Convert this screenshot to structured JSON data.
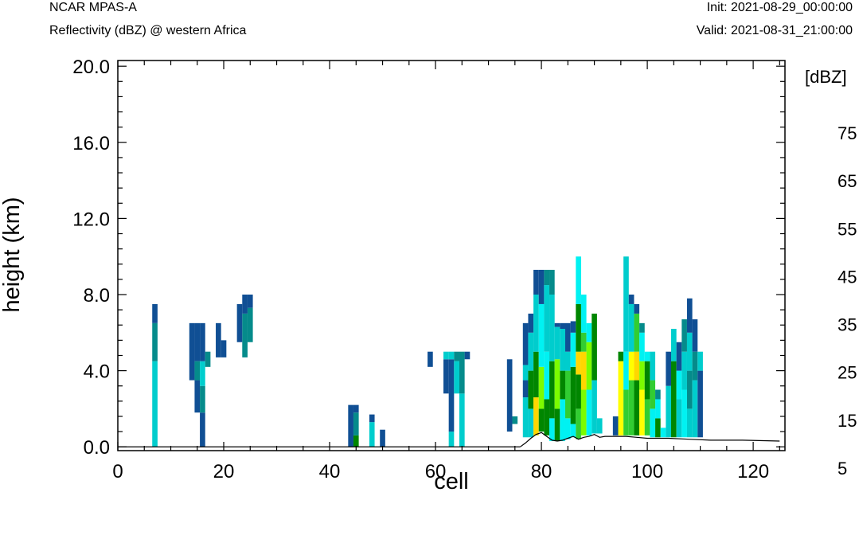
{
  "header": {
    "model": "NCAR MPAS-A",
    "field": "Reflectivity (dBZ) @ western Africa",
    "init": "Init: 2021-08-29_00:00:00",
    "valid": "Valid: 2021-08-31_21:00:00"
  },
  "chart_data": {
    "type": "heatmap",
    "xlabel": "cell",
    "ylabel": "height (km)",
    "xlim": [
      0,
      126
    ],
    "ylim": [
      -0.2,
      20.3
    ],
    "xticks": [
      0,
      20,
      40,
      60,
      80,
      100,
      120
    ],
    "xtick_labels": [
      "0",
      "20",
      "40",
      "60",
      "80",
      "100",
      "120"
    ],
    "yticks": [
      0,
      4,
      8,
      12,
      16,
      20
    ],
    "ytick_labels": [
      "0.0",
      "4.0",
      "8.0",
      "12.0",
      "16.0",
      "20.0"
    ],
    "colorbar": {
      "unit_label": "[dBZ]",
      "levels": [
        5,
        10,
        15,
        20,
        25,
        30,
        35,
        40,
        45,
        50,
        55,
        60,
        65,
        70,
        75
      ],
      "colors": [
        "#104f94",
        "#058b8b",
        "#00cdcd",
        "#00f2f2",
        "#008600",
        "#32cd32",
        "#7cfc00",
        "#ffff00",
        "#ffd700",
        "#ff8000",
        "#ff0000",
        "#8b0000",
        "#ff00ff",
        "#9a32e6",
        "#ffe4e1"
      ],
      "labels": [
        "5",
        "15",
        "25",
        "35",
        "45",
        "55",
        "65",
        "75"
      ],
      "label_values": [
        5,
        15,
        25,
        35,
        45,
        55,
        65,
        75
      ]
    },
    "terrain": [
      [
        76,
        0.0
      ],
      [
        77,
        0.2
      ],
      [
        78,
        0.45
      ],
      [
        79,
        0.65
      ],
      [
        80,
        0.75
      ],
      [
        81,
        0.55
      ],
      [
        82,
        0.35
      ],
      [
        83,
        0.3
      ],
      [
        84,
        0.35
      ],
      [
        85,
        0.45
      ],
      [
        86,
        0.55
      ],
      [
        87,
        0.4
      ],
      [
        88,
        0.5
      ],
      [
        89,
        0.55
      ],
      [
        90,
        0.65
      ],
      [
        91,
        0.5
      ],
      [
        92,
        0.55
      ],
      [
        94,
        0.55
      ],
      [
        96,
        0.55
      ],
      [
        98,
        0.5
      ],
      [
        100,
        0.45
      ],
      [
        104,
        0.45
      ],
      [
        108,
        0.4
      ],
      [
        112,
        0.35
      ],
      [
        118,
        0.35
      ],
      [
        125,
        0.3
      ]
    ],
    "columns": [
      {
        "x": 7,
        "segs": [
          [
            0,
            4.5,
            15
          ],
          [
            4.5,
            6.5,
            10
          ],
          [
            6.5,
            7.5,
            5
          ]
        ]
      },
      {
        "x": 14,
        "segs": [
          [
            3.5,
            6.5,
            5
          ]
        ]
      },
      {
        "x": 15,
        "segs": [
          [
            1.8,
            3.5,
            5
          ],
          [
            3.5,
            4.5,
            10
          ],
          [
            4.5,
            6.5,
            5
          ]
        ]
      },
      {
        "x": 16,
        "segs": [
          [
            0,
            1.8,
            5
          ],
          [
            1.8,
            3.2,
            10
          ],
          [
            3.2,
            4.5,
            15
          ],
          [
            4.5,
            6.5,
            5
          ]
        ]
      },
      {
        "x": 17,
        "segs": [
          [
            4.2,
            5.0,
            10
          ]
        ]
      },
      {
        "x": 19,
        "segs": [
          [
            4.7,
            6.5,
            5
          ]
        ]
      },
      {
        "x": 20,
        "segs": [
          [
            4.7,
            5.6,
            5
          ]
        ]
      },
      {
        "x": 23,
        "segs": [
          [
            5.5,
            7.5,
            5
          ]
        ]
      },
      {
        "x": 24,
        "segs": [
          [
            4.7,
            7.0,
            10
          ],
          [
            7.0,
            8.0,
            5
          ]
        ]
      },
      {
        "x": 25,
        "segs": [
          [
            5.5,
            7.3,
            10
          ],
          [
            7.3,
            8.0,
            5
          ]
        ]
      },
      {
        "x": 44,
        "segs": [
          [
            0,
            2.2,
            5
          ]
        ]
      },
      {
        "x": 45,
        "segs": [
          [
            0,
            0.6,
            25
          ],
          [
            0.6,
            1.8,
            10
          ],
          [
            1.8,
            2.2,
            5
          ]
        ]
      },
      {
        "x": 48,
        "segs": [
          [
            0,
            1.3,
            15
          ],
          [
            1.3,
            1.7,
            5
          ]
        ]
      },
      {
        "x": 50,
        "segs": [
          [
            0,
            0.9,
            5
          ]
        ]
      },
      {
        "x": 59,
        "segs": [
          [
            4.2,
            5.0,
            5
          ]
        ]
      },
      {
        "x": 62,
        "segs": [
          [
            2.8,
            4.6,
            5
          ],
          [
            4.6,
            5.0,
            15
          ]
        ]
      },
      {
        "x": 63,
        "segs": [
          [
            0,
            0.8,
            15
          ],
          [
            0.8,
            4.6,
            5
          ],
          [
            4.6,
            5.0,
            15
          ]
        ]
      },
      {
        "x": 64,
        "segs": [
          [
            2.8,
            4.5,
            15
          ],
          [
            4.5,
            5.0,
            10
          ]
        ]
      },
      {
        "x": 65,
        "segs": [
          [
            0,
            2.8,
            15
          ],
          [
            2.8,
            5.0,
            10
          ]
        ]
      },
      {
        "x": 66,
        "segs": [
          [
            4.6,
            5.0,
            5
          ]
        ]
      },
      {
        "x": 74,
        "segs": [
          [
            0.8,
            4.6,
            5
          ]
        ]
      },
      {
        "x": 75,
        "segs": [
          [
            1.2,
            1.6,
            10
          ]
        ]
      },
      {
        "x": 77,
        "segs": [
          [
            0.5,
            2.6,
            15
          ],
          [
            2.6,
            3.5,
            5
          ],
          [
            3.5,
            4.3,
            15
          ],
          [
            4.3,
            6.5,
            5
          ]
        ]
      },
      {
        "x": 78,
        "segs": [
          [
            0.5,
            2.0,
            15
          ],
          [
            2.0,
            4.0,
            25
          ],
          [
            4.0,
            6.0,
            15
          ],
          [
            6.0,
            7.0,
            5
          ]
        ]
      },
      {
        "x": 79,
        "segs": [
          [
            0.6,
            2.6,
            45
          ],
          [
            2.6,
            5.0,
            25
          ],
          [
            5.0,
            8.0,
            15
          ],
          [
            8.0,
            9.3,
            5
          ]
        ]
      },
      {
        "x": 80,
        "segs": [
          [
            0.8,
            2.0,
            25
          ],
          [
            2.0,
            4.2,
            35
          ],
          [
            4.2,
            7.5,
            20
          ],
          [
            7.5,
            9.3,
            5
          ]
        ]
      },
      {
        "x": 81,
        "segs": [
          [
            0.6,
            2.5,
            25
          ],
          [
            2.5,
            5.0,
            20
          ],
          [
            5.0,
            8.5,
            15
          ],
          [
            8.5,
            9.3,
            10
          ]
        ]
      },
      {
        "x": 82,
        "segs": [
          [
            0.3,
            1.5,
            20
          ],
          [
            1.5,
            4.5,
            25
          ],
          [
            4.5,
            8.0,
            15
          ],
          [
            8.0,
            9.3,
            10
          ]
        ]
      },
      {
        "x": 83,
        "segs": [
          [
            0.3,
            2.0,
            25
          ],
          [
            2.0,
            4.6,
            35
          ],
          [
            4.6,
            6.3,
            15
          ],
          [
            6.3,
            6.5,
            5
          ]
        ]
      },
      {
        "x": 84,
        "segs": [
          [
            0.3,
            2.5,
            20
          ],
          [
            2.5,
            4.0,
            25
          ],
          [
            4.0,
            6.2,
            15
          ],
          [
            6.2,
            6.5,
            5
          ]
        ]
      },
      {
        "x": 85,
        "segs": [
          [
            0.4,
            1.5,
            20
          ],
          [
            1.5,
            4.0,
            30
          ],
          [
            4.0,
            5.0,
            15
          ],
          [
            5.0,
            6.5,
            5
          ]
        ]
      },
      {
        "x": 86,
        "segs": [
          [
            0.5,
            1.2,
            20
          ],
          [
            1.2,
            4.2,
            25
          ],
          [
            4.2,
            6.0,
            20
          ],
          [
            6.0,
            6.6,
            5
          ]
        ]
      },
      {
        "x": 87,
        "segs": [
          [
            0.4,
            2.0,
            30
          ],
          [
            2.0,
            3.8,
            25
          ],
          [
            3.8,
            5.0,
            45
          ],
          [
            5.0,
            7.5,
            25
          ],
          [
            7.5,
            10.0,
            20
          ]
        ]
      },
      {
        "x": 88,
        "segs": [
          [
            0.6,
            3.0,
            35
          ],
          [
            3.0,
            5.0,
            45
          ],
          [
            5.0,
            6.0,
            30
          ],
          [
            6.0,
            8.0,
            20
          ]
        ]
      },
      {
        "x": 89,
        "segs": [
          [
            0.6,
            3.0,
            20
          ],
          [
            3.0,
            5.5,
            35
          ],
          [
            5.5,
            6.5,
            20
          ]
        ]
      },
      {
        "x": 90,
        "segs": [
          [
            0.7,
            3.5,
            15
          ],
          [
            3.5,
            7.0,
            25
          ]
        ]
      },
      {
        "x": 91,
        "segs": [
          [
            0.7,
            1.5,
            15
          ]
        ]
      },
      {
        "x": 94,
        "segs": [
          [
            0.6,
            1.6,
            5
          ]
        ]
      },
      {
        "x": 95,
        "segs": [
          [
            0.6,
            4.5,
            40
          ],
          [
            4.5,
            5.0,
            25
          ]
        ]
      },
      {
        "x": 96,
        "segs": [
          [
            0.6,
            3.0,
            30
          ],
          [
            3.0,
            5.0,
            20
          ],
          [
            5.0,
            10.0,
            15
          ]
        ]
      },
      {
        "x": 97,
        "segs": [
          [
            0.6,
            3.5,
            30
          ],
          [
            3.5,
            5.0,
            40
          ],
          [
            5.0,
            7.5,
            15
          ],
          [
            7.5,
            8.0,
            5
          ]
        ]
      },
      {
        "x": 98,
        "segs": [
          [
            0.6,
            3.5,
            25
          ],
          [
            3.5,
            5.0,
            45
          ],
          [
            5.0,
            7.0,
            30
          ],
          [
            7.0,
            7.5,
            5
          ]
        ]
      },
      {
        "x": 99,
        "segs": [
          [
            0.6,
            3.0,
            40
          ],
          [
            3.0,
            4.5,
            35
          ],
          [
            4.5,
            6.0,
            20
          ],
          [
            6.0,
            6.5,
            10
          ]
        ]
      },
      {
        "x": 100,
        "segs": [
          [
            0.6,
            2.5,
            30
          ],
          [
            2.5,
            4.5,
            25
          ],
          [
            4.5,
            5.0,
            20
          ]
        ]
      },
      {
        "x": 101,
        "segs": [
          [
            0.5,
            2.0,
            20
          ],
          [
            2.0,
            3.5,
            30
          ],
          [
            3.5,
            5.0,
            15
          ]
        ]
      },
      {
        "x": 102,
        "segs": [
          [
            0.5,
            1.5,
            25
          ],
          [
            1.5,
            2.5,
            20
          ],
          [
            2.5,
            3.0,
            10
          ]
        ]
      },
      {
        "x": 103,
        "segs": [
          [
            0.5,
            1.0,
            20
          ]
        ]
      },
      {
        "x": 104,
        "segs": [
          [
            0.5,
            3.2,
            15
          ],
          [
            3.2,
            5.0,
            5
          ]
        ]
      },
      {
        "x": 105,
        "segs": [
          [
            0.5,
            4.5,
            25
          ],
          [
            4.5,
            6.2,
            15
          ]
        ]
      },
      {
        "x": 106,
        "segs": [
          [
            0.5,
            2.5,
            15
          ],
          [
            2.5,
            4.0,
            20
          ],
          [
            4.0,
            5.5,
            5
          ]
        ]
      },
      {
        "x": 107,
        "segs": [
          [
            0.5,
            3.0,
            20
          ],
          [
            3.0,
            5.0,
            15
          ],
          [
            5.0,
            6.7,
            10
          ]
        ]
      },
      {
        "x": 108,
        "segs": [
          [
            0.5,
            2.0,
            15
          ],
          [
            2.0,
            4.0,
            10
          ],
          [
            4.0,
            6.0,
            15
          ],
          [
            6.0,
            7.8,
            5
          ]
        ]
      },
      {
        "x": 109,
        "segs": [
          [
            0.5,
            3.5,
            15
          ],
          [
            3.5,
            5.0,
            10
          ],
          [
            5.0,
            6.7,
            5
          ]
        ]
      },
      {
        "x": 110,
        "segs": [
          [
            0.5,
            4.0,
            5
          ],
          [
            4.0,
            5.0,
            15
          ]
        ]
      }
    ]
  }
}
